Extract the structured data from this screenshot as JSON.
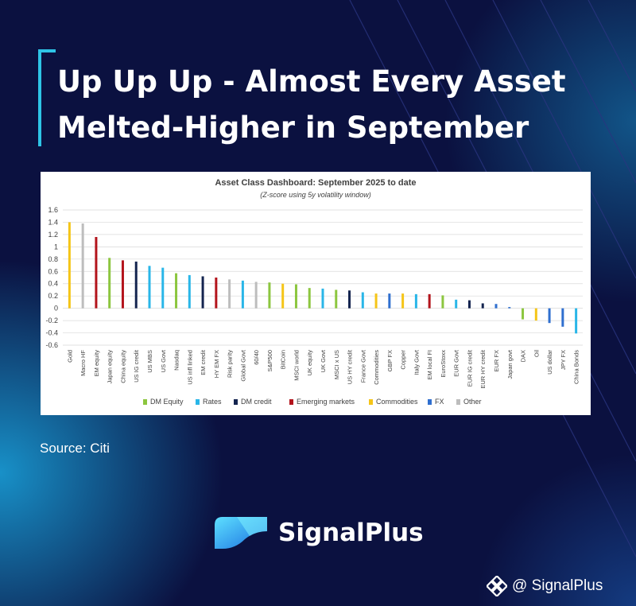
{
  "title": {
    "line1": "Up Up Up - Almost Every Asset",
    "line2": "Melted-Higher in September"
  },
  "source": "Source: Citi",
  "brand": {
    "name": "SignalPlus",
    "logo_icon": "signalplus-logo-icon"
  },
  "handle": {
    "text": "@ SignalPlus",
    "icon": "binance-square-icon"
  },
  "colors": {
    "background": "#0b1140",
    "accent": "#2ec4e6",
    "DM Equity": "#8cc63f",
    "Rates": "#29b6e8",
    "DM credit": "#14244f",
    "Emerging markets": "#b3141c",
    "Commodities": "#f5c518",
    "FX": "#2f6fcf",
    "Other": "#bdbdbd"
  },
  "chart_data": {
    "type": "bar",
    "title": "Asset Class Dashboard: September 2025 to date",
    "subtitle": "(Z-score using 5y volatility window)",
    "ylim": [
      -0.6,
      1.6
    ],
    "yticks": [
      "1.6",
      "1.4",
      "1.2",
      "1",
      "0.8",
      "0.6",
      "0.4",
      "0.2",
      "0",
      "-0.2",
      "-0.4",
      "-0.6"
    ],
    "ytick_values": [
      1.6,
      1.4,
      1.2,
      1.0,
      0.8,
      0.6,
      0.4,
      0.2,
      0,
      -0.2,
      -0.4,
      -0.6
    ],
    "grid": true,
    "legend_position": "bottom",
    "legend": [
      "DM Equity",
      "Rates",
      "DM credit",
      "Emerging markets",
      "Commodities",
      "FX",
      "Other"
    ],
    "categories": [
      "Gold",
      "Macro HF",
      "EM equity",
      "Japan equity",
      "China equity",
      "US IG credit",
      "US MBS",
      "US Govt",
      "Nasdaq",
      "US infl linked",
      "EM credit",
      "HY EM FX",
      "Risk parity",
      "Global Govt",
      "60/40",
      "S&P500",
      "BitCoin",
      "MSCI world",
      "UK equity",
      "UK Govt",
      "MSCI x US",
      "US HY credit",
      "France Govt",
      "Commodities",
      "GBP FX",
      "Copper",
      "Italy Govt",
      "EM local FI",
      "EuroStoxx",
      "EUR Govt",
      "EUR IG credit",
      "EUR HY credit",
      "EUR FX",
      "Japan govt",
      "DAX",
      "Oil",
      "US dollar",
      "JPY FX",
      "China Bonds"
    ],
    "values": [
      1.4,
      1.38,
      1.16,
      0.82,
      0.78,
      0.76,
      0.69,
      0.66,
      0.57,
      0.54,
      0.52,
      0.5,
      0.47,
      0.45,
      0.43,
      0.42,
      0.4,
      0.39,
      0.33,
      0.32,
      0.3,
      0.29,
      0.26,
      0.24,
      0.24,
      0.24,
      0.23,
      0.23,
      0.21,
      0.14,
      0.13,
      0.08,
      0.07,
      0.02,
      -0.18,
      -0.2,
      -0.24,
      -0.3,
      -0.41
    ],
    "groups": [
      "Commodities",
      "Other",
      "Emerging markets",
      "DM Equity",
      "Emerging markets",
      "DM credit",
      "Rates",
      "Rates",
      "DM Equity",
      "Rates",
      "DM credit",
      "Emerging markets",
      "Other",
      "Rates",
      "Other",
      "DM Equity",
      "Commodities",
      "DM Equity",
      "DM Equity",
      "Rates",
      "DM Equity",
      "DM credit",
      "Rates",
      "Commodities",
      "FX",
      "Commodities",
      "Rates",
      "Emerging markets",
      "DM Equity",
      "Rates",
      "DM credit",
      "DM credit",
      "FX",
      "FX",
      "DM Equity",
      "Commodities",
      "FX",
      "FX",
      "Rates"
    ]
  }
}
